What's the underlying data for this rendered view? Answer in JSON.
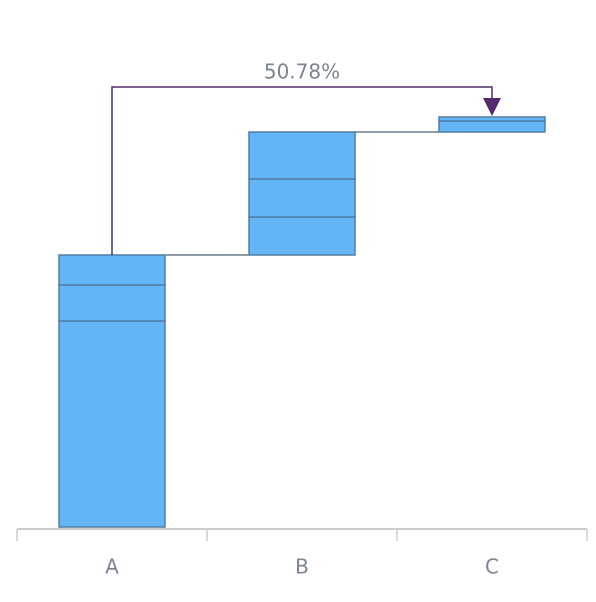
{
  "chart_data": {
    "type": "waterfall",
    "categories": [
      "A",
      "B",
      "C"
    ],
    "series": [
      {
        "color": "#64b5f6",
        "values": [
          206,
          38,
          11
        ]
      },
      {
        "color": "#64b5f6",
        "values": [
          36,
          38,
          4
        ]
      },
      {
        "color": "#64b5f6",
        "values": [
          30,
          47,
          null
        ]
      }
    ],
    "ylim": [
      0,
      487
    ],
    "annotation": "50.78%"
  }
}
